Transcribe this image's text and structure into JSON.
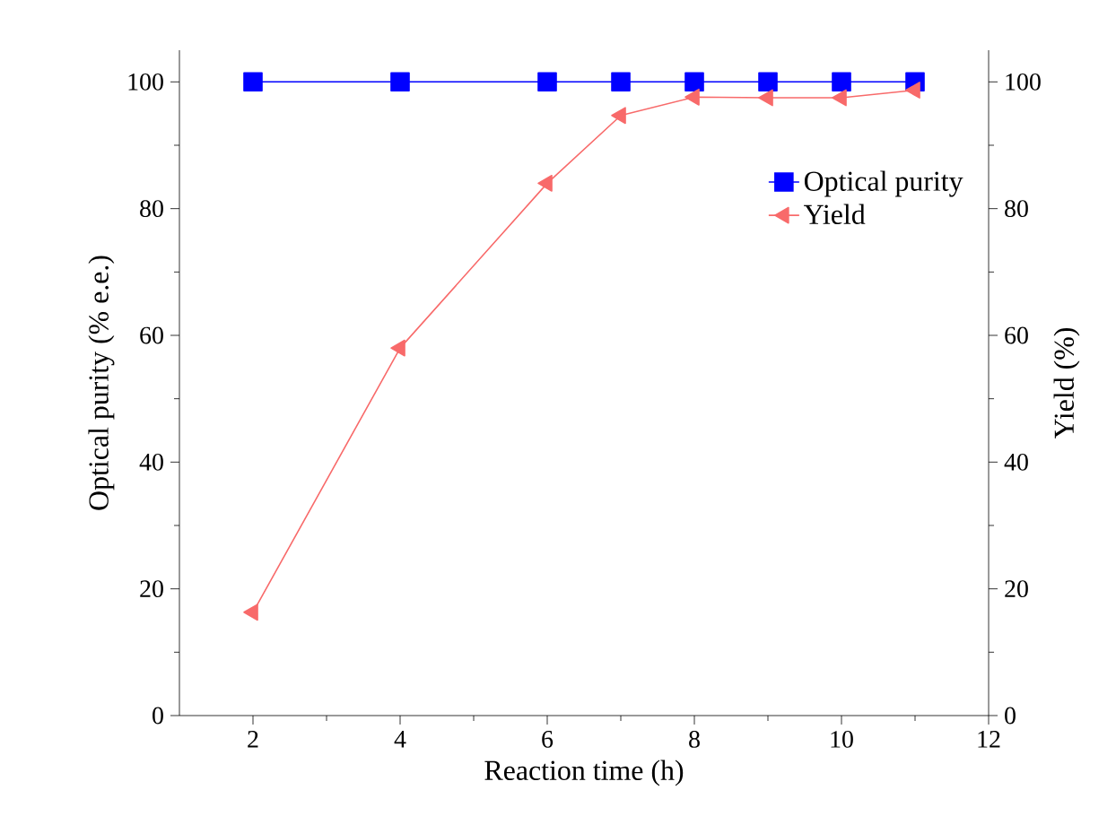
{
  "chart_data": {
    "type": "line",
    "xlabel": "Reaction time (h)",
    "ylabel": "Optical purity (% e.e.)",
    "y2label": "Yield (%)",
    "x": [
      2,
      4,
      6,
      7,
      8,
      9,
      10,
      11
    ],
    "series": [
      {
        "name": "Optical purity",
        "color": "#0000ff",
        "marker": "square",
        "values": [
          100,
          100,
          100,
          100,
          100,
          100,
          100,
          100
        ]
      },
      {
        "name": "Yield",
        "color": "#f86a6a",
        "marker": "triangle",
        "axis": "y2",
        "values": [
          16.3,
          58,
          84,
          94.7,
          97.6,
          97.5,
          97.5,
          98.7
        ]
      }
    ],
    "xlim": [
      1,
      12
    ],
    "xticks": [
      2,
      4,
      6,
      8,
      10,
      12
    ],
    "ylim": [
      0,
      105
    ],
    "yticks": [
      0,
      20,
      40,
      60,
      80,
      100
    ],
    "y2lim": [
      0,
      105
    ],
    "y2ticks": [
      0,
      20,
      40,
      60,
      80,
      100
    ],
    "legend": "top right",
    "line_style": "solid"
  }
}
